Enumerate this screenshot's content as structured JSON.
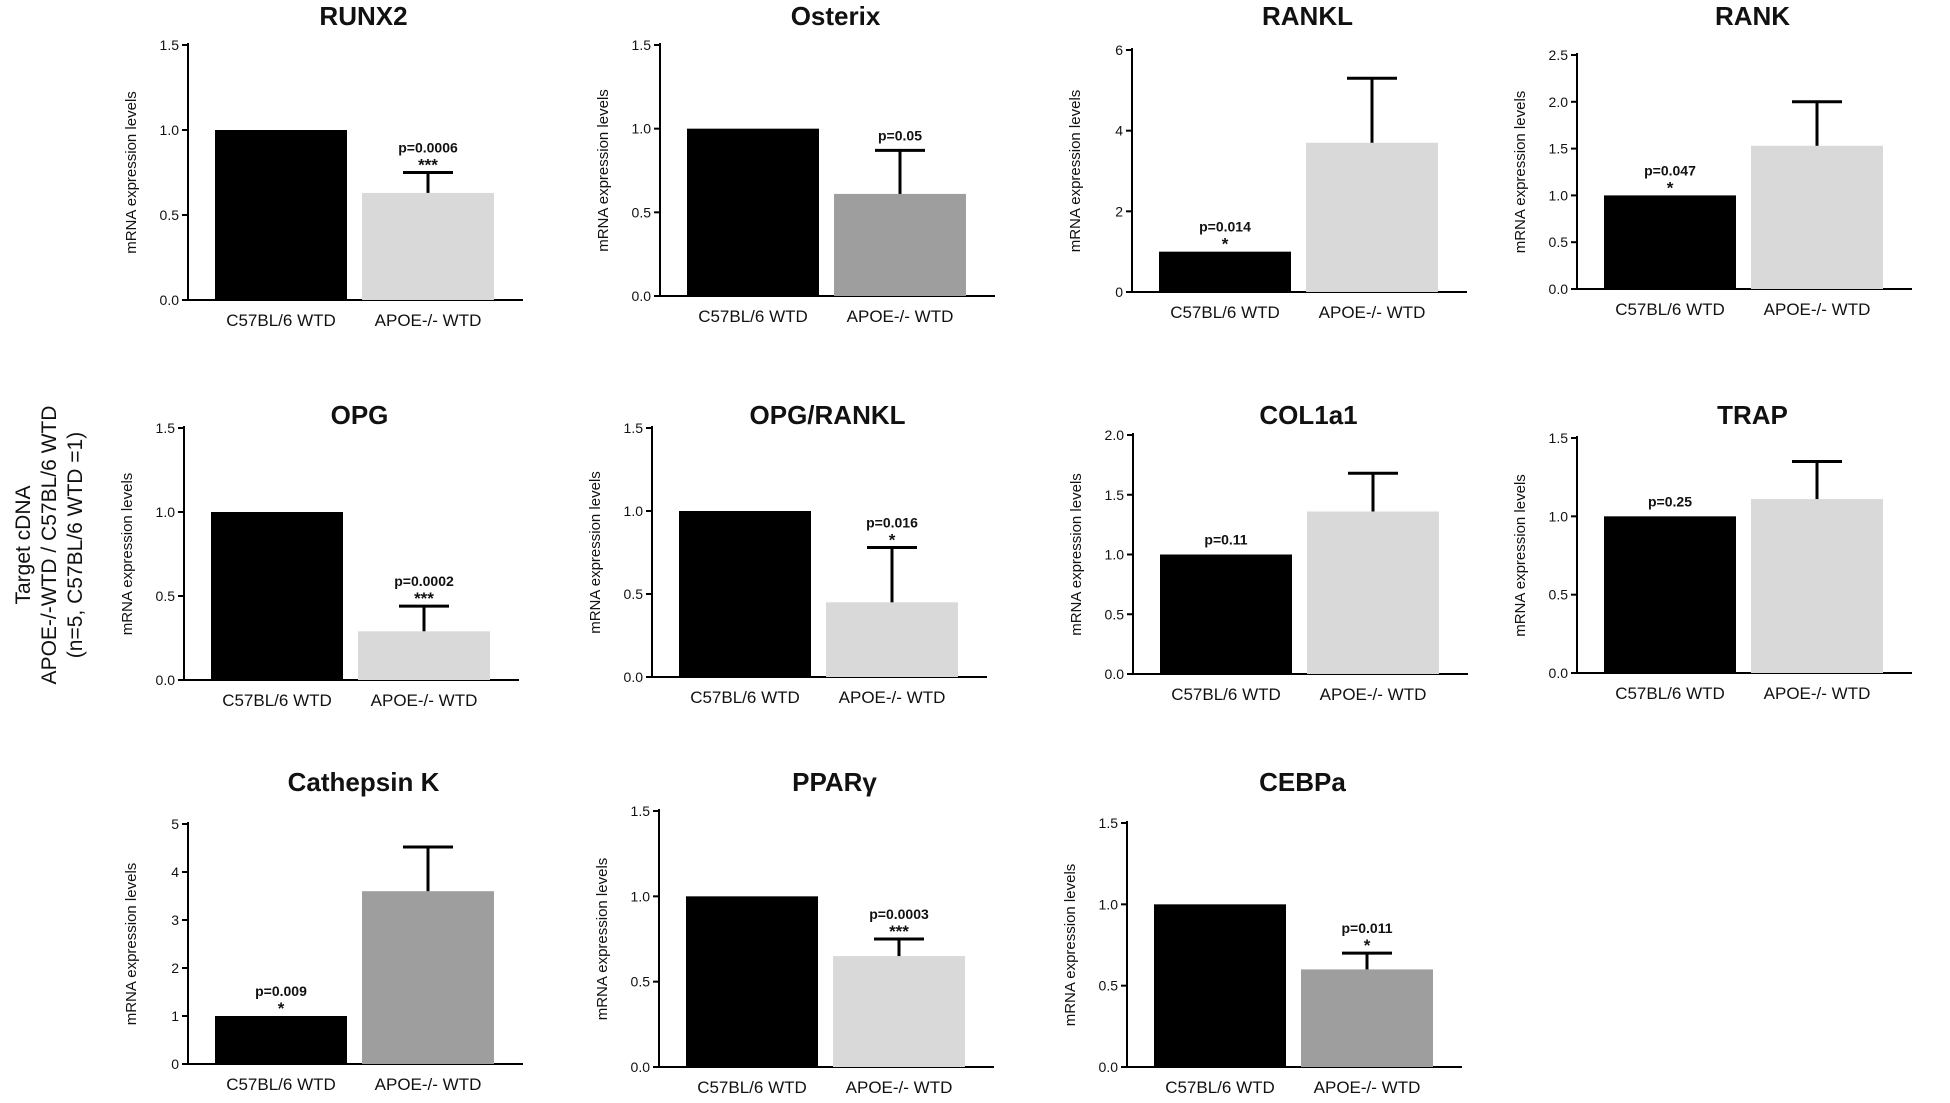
{
  "y_axis_caption": {
    "line1": "Target cDNA",
    "line2": "APOE-/-WTD / C57BL/6 WTD",
    "line3": "(n=5, C57BL/6 WTD =1)"
  },
  "colors": {
    "black": "#000000",
    "light_gray": "#d9d9d9",
    "dark_gray": "#9e9e9e"
  },
  "chart_data": [
    {
      "type": "bar",
      "title": "RUNX2",
      "ylabel": "mRNA expression levels",
      "ylim": [
        0,
        1.5
      ],
      "yticks": [
        "0.0",
        "0.5",
        "1.0",
        "1.5"
      ],
      "categories": [
        "C57BL/6 WTD",
        "APOE-/- WTD"
      ],
      "values": [
        1.0,
        0.63
      ],
      "errors": [
        0,
        0.12
      ],
      "bar_colors": [
        "black",
        "light_gray"
      ],
      "annotation": {
        "bar": 1,
        "p": "p=0.0006",
        "sig": "***"
      }
    },
    {
      "type": "bar",
      "title": "Osterix",
      "ylabel": "mRNA expression levels",
      "ylim": [
        0,
        1.5
      ],
      "yticks": [
        "0.0",
        "0.5",
        "1.0",
        "1.5"
      ],
      "categories": [
        "C57BL/6 WTD",
        "APOE-/- WTD"
      ],
      "values": [
        1.0,
        0.61
      ],
      "errors": [
        0,
        0.26
      ],
      "bar_colors": [
        "black",
        "dark_gray"
      ],
      "annotation": {
        "bar": 1,
        "p": "p=0.05",
        "sig": ""
      }
    },
    {
      "type": "bar",
      "title": "RANKL",
      "ylabel": "mRNA expression levels",
      "ylim": [
        0,
        6
      ],
      "yticks": [
        "0",
        "2",
        "4",
        "6"
      ],
      "categories": [
        "C57BL/6 WTD",
        "APOE-/- WTD"
      ],
      "values": [
        1.0,
        3.7
      ],
      "errors": [
        0,
        1.6
      ],
      "bar_colors": [
        "black",
        "light_gray"
      ],
      "annotation": {
        "bar": 0,
        "p": "p=0.014",
        "sig": "*"
      }
    },
    {
      "type": "bar",
      "title": "RANK",
      "ylabel": "mRNA expression levels",
      "ylim": [
        0,
        2.5
      ],
      "yticks": [
        "0.0",
        "0.5",
        "1.0",
        "1.5",
        "2.0",
        "2.5"
      ],
      "categories": [
        "C57BL/6 WTD",
        "APOE-/- WTD"
      ],
      "values": [
        1.0,
        1.53
      ],
      "errors": [
        0,
        0.47
      ],
      "bar_colors": [
        "black",
        "light_gray"
      ],
      "annotation": {
        "bar": 0,
        "p": "p=0.047",
        "sig": "*"
      }
    },
    {
      "type": "bar",
      "title": "OPG",
      "ylabel": "mRNA expression levels",
      "ylim": [
        0,
        1.5
      ],
      "yticks": [
        "0.0",
        "0.5",
        "1.0",
        "1.5"
      ],
      "categories": [
        "C57BL/6 WTD",
        "APOE-/- WTD"
      ],
      "values": [
        1.0,
        0.29
      ],
      "errors": [
        0,
        0.15
      ],
      "bar_colors": [
        "black",
        "light_gray"
      ],
      "annotation": {
        "bar": 1,
        "p": "p=0.0002",
        "sig": "***"
      }
    },
    {
      "type": "bar",
      "title": "OPG/RANKL",
      "ylabel": "mRNA expression levels",
      "ylim": [
        0,
        1.5
      ],
      "yticks": [
        "0.0",
        "0.5",
        "1.0",
        "1.5"
      ],
      "categories": [
        "C57BL/6 WTD",
        "APOE-/- WTD"
      ],
      "values": [
        1.0,
        0.45
      ],
      "errors": [
        0,
        0.33
      ],
      "bar_colors": [
        "black",
        "light_gray"
      ],
      "annotation": {
        "bar": 1,
        "p": "p=0.016",
        "sig": "*"
      }
    },
    {
      "type": "bar",
      "title": "COL1a1",
      "ylabel": "mRNA expression levels",
      "ylim": [
        0,
        2.0
      ],
      "yticks": [
        "0.0",
        "0.5",
        "1.0",
        "1.5",
        "2.0"
      ],
      "categories": [
        "C57BL/6 WTD",
        "APOE-/- WTD"
      ],
      "values": [
        1.0,
        1.36
      ],
      "errors": [
        0,
        0.32
      ],
      "bar_colors": [
        "black",
        "light_gray"
      ],
      "annotation": {
        "bar": 0,
        "p": "p=0.11",
        "sig": ""
      }
    },
    {
      "type": "bar",
      "title": "TRAP",
      "ylabel": "mRNA expression levels",
      "ylim": [
        0,
        1.5
      ],
      "yticks": [
        "0.0",
        "0.5",
        "1.0",
        "1.5"
      ],
      "categories": [
        "C57BL/6 WTD",
        "APOE-/- WTD"
      ],
      "values": [
        1.0,
        1.11
      ],
      "errors": [
        0,
        0.24
      ],
      "bar_colors": [
        "black",
        "light_gray"
      ],
      "annotation": {
        "bar": 0,
        "p": "p=0.25",
        "sig": ""
      }
    },
    {
      "type": "bar",
      "title": "Cathepsin K",
      "ylabel": "mRNA expression levels",
      "ylim": [
        0,
        5
      ],
      "yticks": [
        "0",
        "1",
        "2",
        "3",
        "4",
        "5"
      ],
      "categories": [
        "C57BL/6 WTD",
        "APOE-/- WTD"
      ],
      "values": [
        1.0,
        3.6
      ],
      "errors": [
        0,
        0.92
      ],
      "bar_colors": [
        "black",
        "dark_gray"
      ],
      "annotation": {
        "bar": 0,
        "p": "p=0.009",
        "sig": "*"
      }
    },
    {
      "type": "bar",
      "title": "PPARγ",
      "ylabel": "mRNA expression levels",
      "ylim": [
        0,
        1.5
      ],
      "yticks": [
        "0.0",
        "0.5",
        "1.0",
        "1.5"
      ],
      "categories": [
        "C57BL/6 WTD",
        "APOE-/- WTD"
      ],
      "values": [
        1.0,
        0.65
      ],
      "errors": [
        0,
        0.1
      ],
      "bar_colors": [
        "black",
        "light_gray"
      ],
      "annotation": {
        "bar": 1,
        "p": "p=0.0003",
        "sig": "***"
      }
    },
    {
      "type": "bar",
      "title": "CEBPa",
      "ylabel": "mRNA expression levels",
      "ylim": [
        0,
        1.5
      ],
      "yticks": [
        "0.0",
        "0.5",
        "1.0",
        "1.5"
      ],
      "categories": [
        "C57BL/6 WTD",
        "APOE-/- WTD"
      ],
      "values": [
        1.0,
        0.6
      ],
      "errors": [
        0,
        0.1
      ],
      "bar_colors": [
        "black",
        "dark_gray"
      ],
      "annotation": {
        "bar": 1,
        "p": "p=0.011",
        "sig": "*"
      }
    }
  ]
}
